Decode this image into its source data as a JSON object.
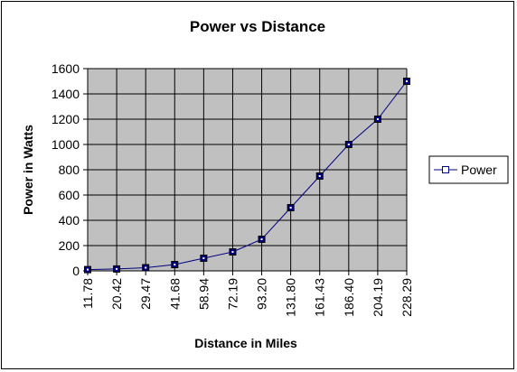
{
  "chart_data": {
    "type": "line",
    "title": "Power vs Distance",
    "xlabel": "Distance in Miles",
    "ylabel": "Power in Watts",
    "categories": [
      "11.78",
      "20.42",
      "29.47",
      "41.68",
      "58.94",
      "72.19",
      "93.20",
      "131.80",
      "161.43",
      "186.40",
      "204.19",
      "228.29"
    ],
    "series": [
      {
        "name": "Power",
        "values": [
          10,
          15,
          25,
          50,
          100,
          150,
          250,
          500,
          750,
          1000,
          1200,
          1500
        ]
      }
    ],
    "ylim": [
      0,
      1600
    ],
    "yticks": [
      "0",
      "200",
      "400",
      "600",
      "800",
      "1000",
      "1200",
      "1400",
      "1600"
    ],
    "grid": true,
    "legend": "right",
    "colors": {
      "plot_background": "#c0c0c0",
      "line": "#000080",
      "marker_fill": "#000080",
      "gridline": "#000000"
    }
  }
}
